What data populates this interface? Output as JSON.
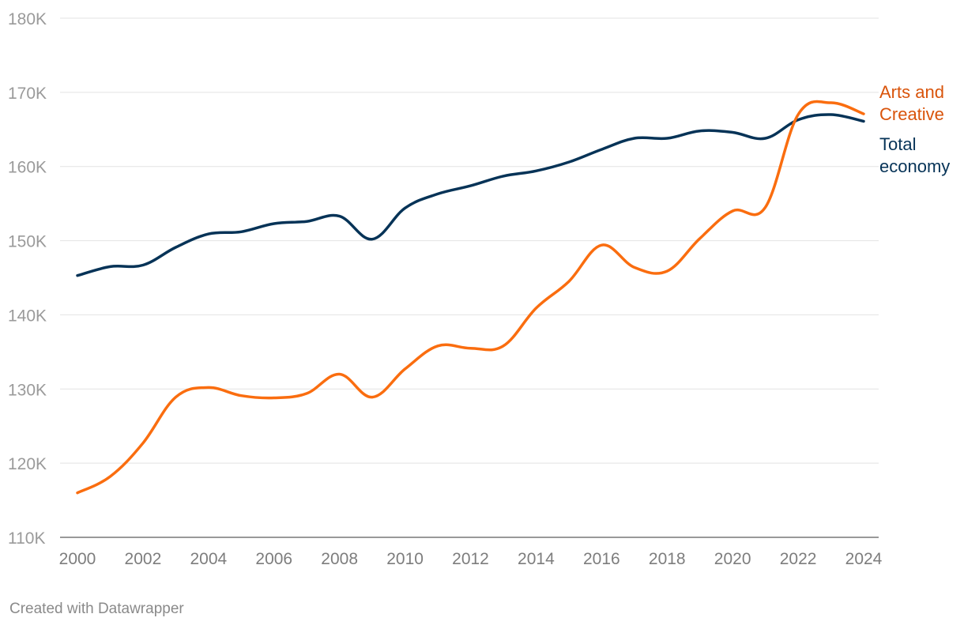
{
  "chart_data": {
    "type": "line",
    "title": "",
    "xlabel": "",
    "ylabel": "",
    "x": [
      2000,
      2001,
      2002,
      2003,
      2004,
      2005,
      2006,
      2007,
      2008,
      2009,
      2010,
      2011,
      2012,
      2013,
      2014,
      2015,
      2016,
      2017,
      2018,
      2019,
      2020,
      2021,
      2022,
      2023,
      2024
    ],
    "xticks": [
      {
        "value": 2000,
        "label": "2000"
      },
      {
        "value": 2002,
        "label": "2002"
      },
      {
        "value": 2004,
        "label": "2004"
      },
      {
        "value": 2006,
        "label": "2006"
      },
      {
        "value": 2008,
        "label": "2008"
      },
      {
        "value": 2010,
        "label": "2010"
      },
      {
        "value": 2012,
        "label": "2012"
      },
      {
        "value": 2014,
        "label": "2014"
      },
      {
        "value": 2016,
        "label": "2016"
      },
      {
        "value": 2018,
        "label": "2018"
      },
      {
        "value": 2020,
        "label": "2020"
      },
      {
        "value": 2022,
        "label": "2022"
      },
      {
        "value": 2024,
        "label": "2024"
      }
    ],
    "yticks": [
      {
        "value": 110000,
        "label": "110K"
      },
      {
        "value": 120000,
        "label": "120K"
      },
      {
        "value": 130000,
        "label": "130K"
      },
      {
        "value": 140000,
        "label": "140K"
      },
      {
        "value": 150000,
        "label": "150K"
      },
      {
        "value": 160000,
        "label": "160K"
      },
      {
        "value": 170000,
        "label": "170K"
      },
      {
        "value": 180000,
        "label": "180K"
      }
    ],
    "xlim": [
      2000,
      2024
    ],
    "ylim": [
      110000,
      180000
    ],
    "grid": true,
    "series": [
      {
        "name": "Arts and Creative",
        "label_lines": [
          "Arts and",
          "Creative"
        ],
        "color": "#fa6d0f",
        "label_color": "#d9540b",
        "values": [
          116000,
          118200,
          122700,
          128900,
          130200,
          129100,
          128800,
          129400,
          132000,
          128900,
          132700,
          135800,
          135500,
          135800,
          140900,
          144500,
          149400,
          146400,
          145900,
          150300,
          154000,
          154500,
          167000,
          168600,
          167100
        ]
      },
      {
        "name": "Total economy",
        "label_lines": [
          "Total",
          "economy"
        ],
        "color": "#063357",
        "label_color": "#063357",
        "values": [
          145300,
          146500,
          146700,
          149100,
          150900,
          151200,
          152300,
          152600,
          153300,
          150200,
          154400,
          156300,
          157400,
          158700,
          159400,
          160600,
          162300,
          163800,
          163800,
          164800,
          164600,
          163800,
          166300,
          167000,
          166100
        ]
      }
    ]
  },
  "footer": {
    "credit": "Created with Datawrapper"
  }
}
